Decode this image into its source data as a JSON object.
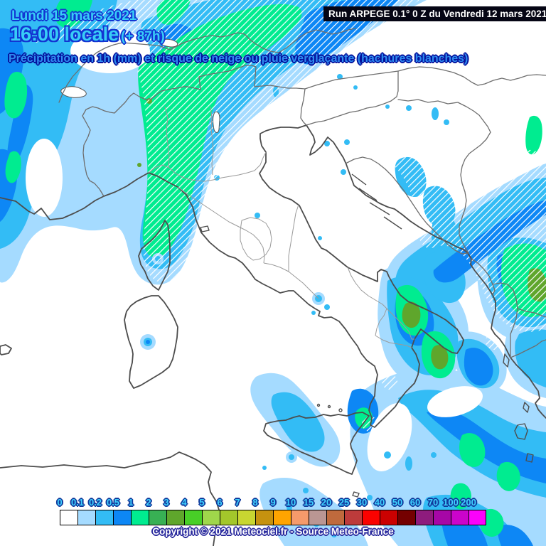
{
  "header": {
    "date_line": "Lundi 15 mars 2021",
    "time_line": "16:00 locale",
    "forecast_offset": "(+ 87h)",
    "subtitle": "Précipitation en 1h (mm) et risque de neige ou pluie verglaçante (hachures blanches)",
    "run_info": "Run ARPEGE 0.1° 0 Z du Vendredi 12 mars 2021"
  },
  "legend": {
    "unit": "mm",
    "thresholds": [
      "0",
      "0.1",
      "0.2",
      "0.5",
      "1",
      "2",
      "3",
      "4",
      "5",
      "6",
      "7",
      "8",
      "9",
      "10",
      "15",
      "20",
      "25",
      "30",
      "40",
      "50",
      "60",
      "70",
      "100",
      "200"
    ],
    "colors": [
      "#ffffff",
      "#a5dbff",
      "#33bcf5",
      "#0d87f5",
      "#00ec90",
      "#38b054",
      "#5fa62c",
      "#48cf27",
      "#9fd74b",
      "#a3c72b",
      "#c8d631",
      "#c6920f",
      "#ffa400",
      "#f59a6b",
      "#ba9693",
      "#bf6a3d",
      "#bd3b3b",
      "#fb0200",
      "#cb0101",
      "#740000",
      "#8e1c7d",
      "#a607a6",
      "#cb04cb",
      "#fb02fb"
    ]
  },
  "footer": {
    "copyright": "Copyright © 2021 Meteociel.fr - Source Meteo-France"
  },
  "map": {
    "hatch_meaning": "risque de neige ou pluie verglaçante (hachures blanches)",
    "colors": {
      "rain_light": "#a5dbff",
      "rain_cyan": "#33bcf5",
      "rain_blue": "#0d87f5",
      "rain_green": "#00ec90",
      "rain_dark_green": "#38b054",
      "rain_olive": "#5fa62c",
      "coastline": "#4d4d4d",
      "country_border": "#6e6e6e",
      "region_border": "#9a9a9a"
    }
  }
}
